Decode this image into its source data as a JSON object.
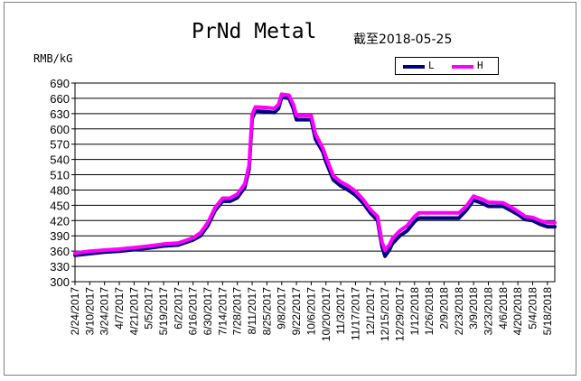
{
  "chart_data": {
    "type": "line",
    "title": "PrNd Metal",
    "subtitle": "截至2018-05-25",
    "ylabel": "RMB/kG",
    "ylim": [
      300,
      690
    ],
    "yticks": [
      300,
      330,
      360,
      390,
      420,
      450,
      480,
      510,
      540,
      570,
      600,
      630,
      660,
      690
    ],
    "xlim": [
      "2017-02-24",
      "2018-05-25"
    ],
    "xtick_labels": [
      "2/24/2017",
      "3/10/2017",
      "3/24/2017",
      "4/7/2017",
      "4/21/2017",
      "5/5/2017",
      "5/19/2017",
      "6/2/2017",
      "6/16/2017",
      "6/30/2017",
      "7/14/2017",
      "7/28/2017",
      "8/11/2017",
      "8/25/2017",
      "9/8/2017",
      "9/22/2017",
      "10/6/2017",
      "10/20/2017",
      "11/3/2017",
      "11/17/2017",
      "12/1/2017",
      "12/15/2017",
      "12/29/2017",
      "1/12/2018",
      "1/26/2018",
      "2/9/2018",
      "2/23/2018",
      "3/9/2018",
      "3/23/2018",
      "4/6/2018",
      "4/20/2018",
      "5/4/2018",
      "5/18/2018"
    ],
    "grid": "horizontal",
    "legend_position": "top-right",
    "series": [
      {
        "name": "L",
        "color": "#000080",
        "points": [
          [
            "2017-02-24",
            352
          ],
          [
            "2017-03-10",
            355
          ],
          [
            "2017-03-24",
            358
          ],
          [
            "2017-04-07",
            360
          ],
          [
            "2017-04-21",
            363
          ],
          [
            "2017-05-05",
            366
          ],
          [
            "2017-05-19",
            370
          ],
          [
            "2017-06-02",
            372
          ],
          [
            "2017-06-16",
            382
          ],
          [
            "2017-06-23",
            390
          ],
          [
            "2017-06-30",
            410
          ],
          [
            "2017-07-07",
            440
          ],
          [
            "2017-07-14",
            458
          ],
          [
            "2017-07-21",
            458
          ],
          [
            "2017-07-28",
            465
          ],
          [
            "2017-08-04",
            485
          ],
          [
            "2017-08-08",
            520
          ],
          [
            "2017-08-11",
            620
          ],
          [
            "2017-08-14",
            635
          ],
          [
            "2017-08-25",
            634
          ],
          [
            "2017-09-01",
            632
          ],
          [
            "2017-09-05",
            640
          ],
          [
            "2017-09-08",
            662
          ],
          [
            "2017-09-15",
            660
          ],
          [
            "2017-09-19",
            640
          ],
          [
            "2017-09-22",
            618
          ],
          [
            "2017-10-06",
            618
          ],
          [
            "2017-10-10",
            580
          ],
          [
            "2017-10-17",
            555
          ],
          [
            "2017-10-20",
            535
          ],
          [
            "2017-10-27",
            500
          ],
          [
            "2017-11-03",
            488
          ],
          [
            "2017-11-10",
            480
          ],
          [
            "2017-11-17",
            470
          ],
          [
            "2017-11-24",
            455
          ],
          [
            "2017-12-01",
            435
          ],
          [
            "2017-12-08",
            420
          ],
          [
            "2017-12-12",
            370
          ],
          [
            "2017-12-15",
            350
          ],
          [
            "2017-12-19",
            362
          ],
          [
            "2017-12-22",
            375
          ],
          [
            "2017-12-29",
            390
          ],
          [
            "2018-01-05",
            400
          ],
          [
            "2018-01-12",
            418
          ],
          [
            "2018-01-16",
            425
          ],
          [
            "2018-01-26",
            425
          ],
          [
            "2018-02-09",
            425
          ],
          [
            "2018-02-23",
            425
          ],
          [
            "2018-03-02",
            440
          ],
          [
            "2018-03-09",
            460
          ],
          [
            "2018-03-16",
            455
          ],
          [
            "2018-03-23",
            448
          ],
          [
            "2018-04-06",
            448
          ],
          [
            "2018-04-13",
            440
          ],
          [
            "2018-04-20",
            432
          ],
          [
            "2018-04-27",
            422
          ],
          [
            "2018-05-04",
            420
          ],
          [
            "2018-05-11",
            413
          ],
          [
            "2018-05-18",
            408
          ],
          [
            "2018-05-25",
            408
          ]
        ]
      },
      {
        "name": "H",
        "color": "#ff00ff",
        "points": [
          [
            "2017-02-24",
            356
          ],
          [
            "2017-03-10",
            360
          ],
          [
            "2017-03-24",
            362
          ],
          [
            "2017-04-07",
            364
          ],
          [
            "2017-04-21",
            367
          ],
          [
            "2017-05-05",
            370
          ],
          [
            "2017-05-19",
            374
          ],
          [
            "2017-06-02",
            376
          ],
          [
            "2017-06-16",
            386
          ],
          [
            "2017-06-23",
            396
          ],
          [
            "2017-06-30",
            416
          ],
          [
            "2017-07-07",
            446
          ],
          [
            "2017-07-14",
            464
          ],
          [
            "2017-07-21",
            464
          ],
          [
            "2017-07-28",
            472
          ],
          [
            "2017-08-04",
            492
          ],
          [
            "2017-08-08",
            528
          ],
          [
            "2017-08-11",
            628
          ],
          [
            "2017-08-14",
            643
          ],
          [
            "2017-08-25",
            642
          ],
          [
            "2017-09-01",
            640
          ],
          [
            "2017-09-05",
            648
          ],
          [
            "2017-09-08",
            668
          ],
          [
            "2017-09-15",
            666
          ],
          [
            "2017-09-19",
            648
          ],
          [
            "2017-09-22",
            626
          ],
          [
            "2017-10-06",
            626
          ],
          [
            "2017-10-10",
            590
          ],
          [
            "2017-10-17",
            562
          ],
          [
            "2017-10-20",
            545
          ],
          [
            "2017-10-27",
            508
          ],
          [
            "2017-11-03",
            496
          ],
          [
            "2017-11-10",
            488
          ],
          [
            "2017-11-17",
            478
          ],
          [
            "2017-11-24",
            462
          ],
          [
            "2017-12-01",
            442
          ],
          [
            "2017-12-08",
            428
          ],
          [
            "2017-12-12",
            378
          ],
          [
            "2017-12-15",
            362
          ],
          [
            "2017-12-19",
            372
          ],
          [
            "2017-12-22",
            385
          ],
          [
            "2017-12-29",
            400
          ],
          [
            "2018-01-05",
            410
          ],
          [
            "2018-01-12",
            428
          ],
          [
            "2018-01-16",
            435
          ],
          [
            "2018-01-26",
            435
          ],
          [
            "2018-02-09",
            435
          ],
          [
            "2018-02-23",
            435
          ],
          [
            "2018-03-02",
            448
          ],
          [
            "2018-03-09",
            468
          ],
          [
            "2018-03-16",
            463
          ],
          [
            "2018-03-23",
            456
          ],
          [
            "2018-04-06",
            455
          ],
          [
            "2018-04-13",
            447
          ],
          [
            "2018-04-20",
            438
          ],
          [
            "2018-04-27",
            428
          ],
          [
            "2018-05-04",
            426
          ],
          [
            "2018-05-11",
            420
          ],
          [
            "2018-05-18",
            416
          ],
          [
            "2018-05-25",
            416
          ]
        ]
      }
    ]
  }
}
